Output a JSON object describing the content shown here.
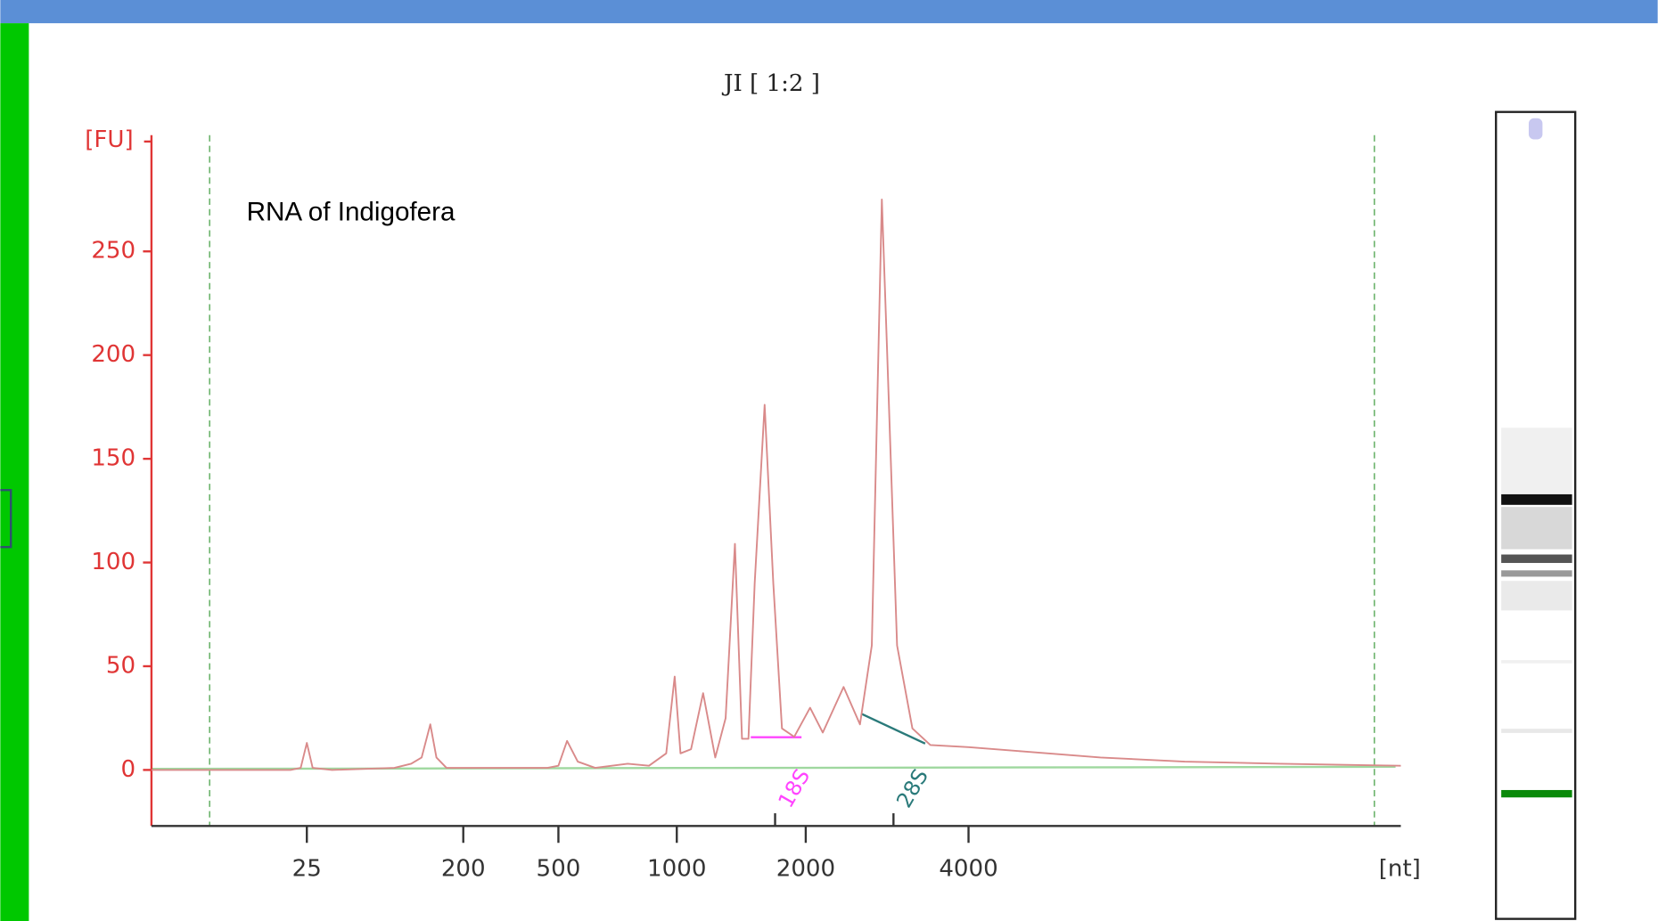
{
  "chart_data": {
    "type": "line",
    "title": "JI [ 1:2 ]",
    "annotation": "RNA of Indigofera",
    "y_label": "[FU]",
    "x_label": "[nt]",
    "peak_labels": [
      "18S",
      "28S"
    ],
    "x": [
      3,
      20,
      23,
      25,
      27,
      35,
      80,
      100,
      115,
      129,
      140,
      160,
      300,
      450,
      500,
      526,
      560,
      620,
      750,
      850,
      940,
      988,
      1020,
      1080,
      1152,
      1230,
      1300,
      1367,
      1420,
      1470,
      1520,
      1603,
      1680,
      1760,
      1880,
      2037,
      2150,
      2350,
      2520,
      2650,
      2765,
      2830,
      2950,
      3150,
      3400,
      4000,
      5000,
      7000,
      10000,
      15000,
      25000
    ],
    "series": [
      {
        "color": "#d98a8a",
        "values": [
          0,
          0,
          1,
          13,
          1,
          0,
          1,
          3,
          6,
          22,
          6,
          1,
          1,
          1,
          2,
          14,
          4,
          1,
          3,
          2,
          8,
          45,
          8,
          10,
          37,
          6,
          25,
          109,
          15,
          15,
          90,
          176,
          90,
          20,
          16,
          30,
          18,
          40,
          22,
          60,
          275,
          200,
          60,
          20,
          12,
          11,
          9,
          6,
          4,
          3,
          2
        ]
      }
    ],
    "xlim": [
      3,
      25000
    ],
    "ylim": [
      -27,
      305
    ],
    "xticks": [
      25,
      200,
      500,
      1000,
      2000,
      4000
    ],
    "yticks": [
      0,
      50,
      100,
      150,
      200,
      250
    ],
    "axis_color": "#e03535"
  }
}
